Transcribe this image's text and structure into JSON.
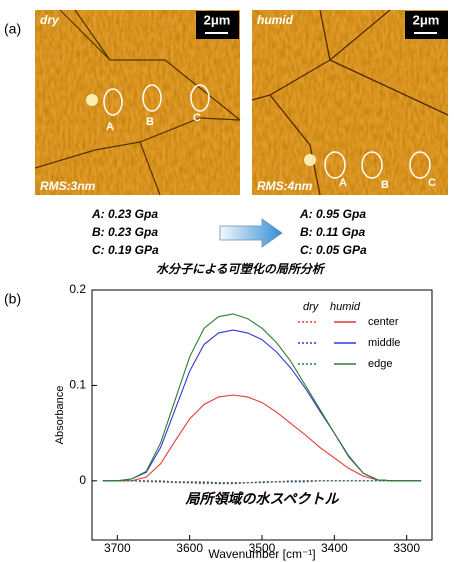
{
  "panel_a": {
    "label": "(a)",
    "images": [
      {
        "condition": "dry",
        "scale": "2μm",
        "rms": "RMS:3nm",
        "points": [
          "A",
          "B",
          "C"
        ]
      },
      {
        "condition": "humid",
        "scale": "2μm",
        "rms": "RMS:4nm",
        "points": [
          "A",
          "B",
          "C"
        ]
      }
    ],
    "results": [
      [
        "A: 0.23 Gpa",
        "B: 0.23 Gpa",
        "C: 0.19 GPa"
      ],
      [
        "A: 0.95 Gpa",
        "B: 0.11 Gpa",
        "C: 0.05 GPa"
      ]
    ],
    "caption": "水分子による可塑化の局所分析"
  },
  "panel_b": {
    "label": "(b)"
  },
  "chart_data": {
    "type": "line",
    "annotation": "局所領域の水スペクトル",
    "x_label": "Wavenumber [cm⁻¹]",
    "y_label": "Absorbance",
    "legend_columns": [
      "dry",
      "humid"
    ],
    "x": [
      3720,
      3700,
      3680,
      3660,
      3640,
      3620,
      3600,
      3580,
      3560,
      3540,
      3520,
      3500,
      3480,
      3460,
      3440,
      3420,
      3400,
      3380,
      3360,
      3340,
      3320,
      3300,
      3280
    ],
    "series": [
      {
        "name": "center",
        "color": "#e23b3b",
        "dry": [
          0,
          0,
          0,
          -0.001,
          -0.001,
          -0.002,
          -0.002,
          -0.003,
          -0.002,
          -0.002,
          -0.002,
          -0.001,
          -0.001,
          -0.001,
          0,
          0,
          0,
          0,
          0,
          0,
          0,
          0,
          0
        ],
        "humid": [
          0,
          0,
          0,
          0.004,
          0.018,
          0.042,
          0.065,
          0.08,
          0.088,
          0.09,
          0.088,
          0.082,
          0.072,
          0.06,
          0.048,
          0.035,
          0.024,
          0.013,
          0.005,
          0.001,
          0,
          0,
          0
        ]
      },
      {
        "name": "middle",
        "color": "#3636d8",
        "dry": [
          0,
          0,
          0,
          0,
          -0.001,
          -0.001,
          -0.002,
          -0.002,
          -0.003,
          -0.003,
          -0.002,
          -0.002,
          -0.001,
          -0.001,
          -0.001,
          0,
          0,
          0,
          0,
          0,
          0,
          0,
          0
        ],
        "humid": [
          0,
          0,
          0.002,
          0.009,
          0.035,
          0.075,
          0.115,
          0.143,
          0.155,
          0.158,
          0.155,
          0.148,
          0.135,
          0.118,
          0.097,
          0.073,
          0.05,
          0.026,
          0.008,
          0.001,
          0,
          0,
          0
        ]
      },
      {
        "name": "edge",
        "color": "#2e7d32",
        "dry": [
          0,
          0,
          0,
          0,
          0,
          -0.001,
          -0.001,
          -0.001,
          -0.002,
          -0.002,
          -0.002,
          -0.001,
          -0.001,
          0,
          0,
          0,
          0,
          0,
          0,
          0,
          0,
          0,
          0
        ],
        "humid": [
          0,
          0,
          0.002,
          0.01,
          0.04,
          0.085,
          0.13,
          0.16,
          0.172,
          0.175,
          0.17,
          0.16,
          0.145,
          0.125,
          0.1,
          0.075,
          0.05,
          0.025,
          0.008,
          0.001,
          0,
          0,
          0
        ]
      }
    ],
    "xlim": [
      3735,
      3265
    ],
    "xticks": [
      3700,
      3600,
      3500,
      3400,
      3300
    ],
    "ylim": [
      -0.062,
      0.2
    ],
    "yticks": [
      0,
      0.1,
      0.2
    ]
  }
}
